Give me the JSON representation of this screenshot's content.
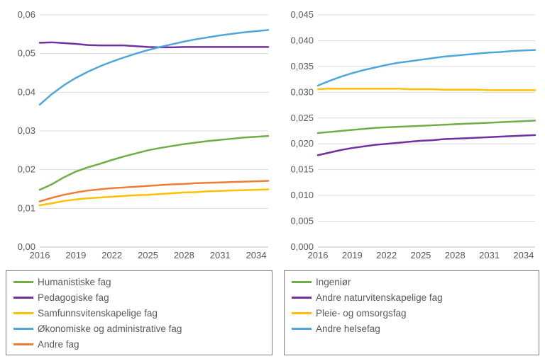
{
  "chart_left": {
    "type": "line",
    "x_values": [
      2016,
      2017,
      2018,
      2019,
      2020,
      2021,
      2022,
      2023,
      2024,
      2025,
      2026,
      2027,
      2028,
      2029,
      2030,
      2031,
      2032,
      2033,
      2034,
      2035
    ],
    "x_ticks": [
      2016,
      2019,
      2022,
      2025,
      2028,
      2031,
      2034
    ],
    "ylim": [
      0.0,
      0.06
    ],
    "ytick_step": 0.01,
    "y_decimal_sep": ",",
    "y_decimals": 2,
    "grid_color": "#d9d9d9",
    "axis_color": "#bfbfbf",
    "label_color": "#595959",
    "line_width": 2.5,
    "series": [
      {
        "name": "Humanistiske fag",
        "color": "#70ad47",
        "values": [
          0.0148,
          0.0162,
          0.018,
          0.0195,
          0.0206,
          0.0215,
          0.0225,
          0.0234,
          0.0242,
          0.025,
          0.0256,
          0.0261,
          0.0266,
          0.027,
          0.0274,
          0.0277,
          0.028,
          0.0283,
          0.0285,
          0.0287
        ]
      },
      {
        "name": "Pedagogiske fag",
        "color": "#7030a0",
        "values": [
          0.0528,
          0.0529,
          0.0527,
          0.0525,
          0.0522,
          0.0521,
          0.0521,
          0.0521,
          0.0519,
          0.0517,
          0.0516,
          0.0516,
          0.0517,
          0.0517,
          0.0517,
          0.0517,
          0.0517,
          0.0517,
          0.0517,
          0.0517
        ]
      },
      {
        "name": "Samfunnsvitenskapelige fag",
        "color": "#ffc000",
        "values": [
          0.0108,
          0.0113,
          0.0119,
          0.0123,
          0.0126,
          0.0128,
          0.013,
          0.0132,
          0.0134,
          0.0135,
          0.0137,
          0.0139,
          0.0141,
          0.0142,
          0.0144,
          0.0145,
          0.0146,
          0.0147,
          0.0148,
          0.0149
        ]
      },
      {
        "name": "Økonomiske og administrative fag",
        "color": "#4ea6dc",
        "values": [
          0.0368,
          0.0395,
          0.0418,
          0.0437,
          0.0453,
          0.0467,
          0.0479,
          0.049,
          0.05,
          0.0509,
          0.0517,
          0.0524,
          0.0531,
          0.0537,
          0.0542,
          0.0547,
          0.0551,
          0.0555,
          0.0558,
          0.0561
        ]
      },
      {
        "name": "Andre fag",
        "color": "#ed7d31",
        "values": [
          0.0118,
          0.0127,
          0.0135,
          0.0141,
          0.0146,
          0.0149,
          0.0152,
          0.0154,
          0.0156,
          0.0158,
          0.016,
          0.0162,
          0.0163,
          0.0165,
          0.0166,
          0.0167,
          0.0168,
          0.0169,
          0.017,
          0.0171
        ]
      }
    ]
  },
  "chart_right": {
    "type": "line",
    "x_values": [
      2016,
      2017,
      2018,
      2019,
      2020,
      2021,
      2022,
      2023,
      2024,
      2025,
      2026,
      2027,
      2028,
      2029,
      2030,
      2031,
      2032,
      2033,
      2034,
      2035
    ],
    "x_ticks": [
      2016,
      2019,
      2022,
      2025,
      2028,
      2031,
      2034
    ],
    "ylim": [
      0.0,
      0.045
    ],
    "ytick_step": 0.005,
    "y_decimal_sep": ",",
    "y_decimals": 3,
    "grid_color": "#d9d9d9",
    "axis_color": "#bfbfbf",
    "label_color": "#595959",
    "line_width": 2.5,
    "series": [
      {
        "name": "Ingeniør",
        "color": "#70ad47",
        "values": [
          0.0221,
          0.0223,
          0.0225,
          0.0227,
          0.0229,
          0.0231,
          0.0232,
          0.0233,
          0.0234,
          0.0235,
          0.0236,
          0.0237,
          0.0238,
          0.0239,
          0.024,
          0.0241,
          0.0242,
          0.0243,
          0.0244,
          0.0245
        ]
      },
      {
        "name": "Andre naturvitenskapelige fag",
        "color": "#7030a0",
        "values": [
          0.0178,
          0.0183,
          0.0188,
          0.0192,
          0.0195,
          0.0198,
          0.02,
          0.0202,
          0.0204,
          0.0206,
          0.0207,
          0.0209,
          0.021,
          0.0211,
          0.0212,
          0.0213,
          0.0214,
          0.0215,
          0.0216,
          0.0217
        ]
      },
      {
        "name": "Pleie- og omsorgsfag",
        "color": "#ffc000",
        "values": [
          0.0306,
          0.0307,
          0.0307,
          0.0307,
          0.0307,
          0.0307,
          0.0307,
          0.0307,
          0.0306,
          0.0306,
          0.0306,
          0.0305,
          0.0305,
          0.0305,
          0.0305,
          0.0304,
          0.0304,
          0.0304,
          0.0304,
          0.0304
        ]
      },
      {
        "name": "Andre helsefag",
        "color": "#4ea6dc",
        "values": [
          0.0313,
          0.0322,
          0.033,
          0.0337,
          0.0343,
          0.0348,
          0.0353,
          0.0357,
          0.036,
          0.0363,
          0.0366,
          0.0369,
          0.0371,
          0.0373,
          0.0375,
          0.0377,
          0.0378,
          0.038,
          0.0381,
          0.0382
        ]
      }
    ]
  },
  "legend_left": [
    {
      "label": "Humanistiske fag",
      "color": "#70ad47"
    },
    {
      "label": "Pedagogiske fag",
      "color": "#7030a0"
    },
    {
      "label": "Samfunnsvitenskapelige fag",
      "color": "#ffc000"
    },
    {
      "label": "Økonomiske og administrative fag",
      "color": "#4ea6dc"
    },
    {
      "label": "Andre fag",
      "color": "#ed7d31"
    }
  ],
  "legend_right": [
    {
      "label": "Ingeniør",
      "color": "#70ad47"
    },
    {
      "label": "Andre naturvitenskapelige fag",
      "color": "#7030a0"
    },
    {
      "label": "Pleie- og omsorgsfag",
      "color": "#ffc000"
    },
    {
      "label": "Andre helsefag",
      "color": "#4ea6dc"
    }
  ]
}
